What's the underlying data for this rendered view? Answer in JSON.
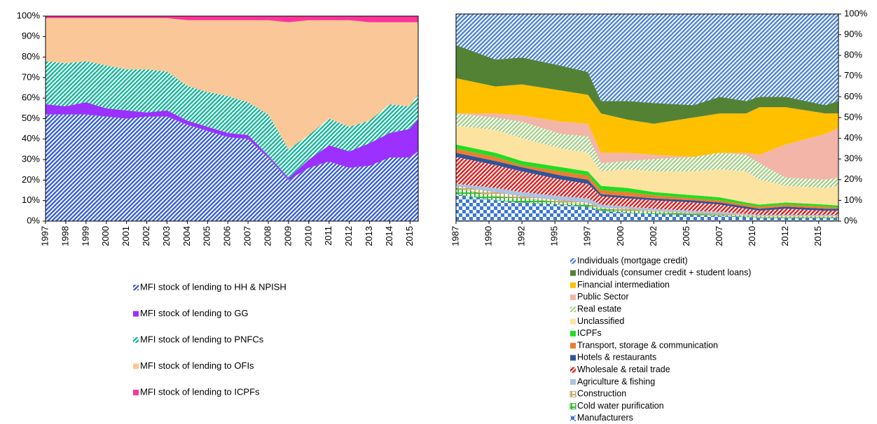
{
  "chart_data": [
    {
      "type": "area",
      "stacked": true,
      "x": [
        1997,
        1998,
        1999,
        2000,
        2001,
        2002,
        2003,
        2004,
        2005,
        2006,
        2007,
        2008,
        2009,
        2010,
        2011,
        2012,
        2013,
        2014,
        2015,
        2015.4
      ],
      "xlim": [
        1997,
        2015.4
      ],
      "xticks": [
        1997,
        1998,
        1999,
        2000,
        2001,
        2002,
        2003,
        2004,
        2005,
        2006,
        2007,
        2008,
        2009,
        2010,
        2011,
        2012,
        2013,
        2014,
        2015
      ],
      "ylim": [
        0,
        100
      ],
      "yticks": [
        {
          "value": 0,
          "label": "0%"
        },
        {
          "value": 10,
          "label": "10%"
        },
        {
          "value": 20,
          "label": "20%"
        },
        {
          "value": 30,
          "label": "30%"
        },
        {
          "value": 40,
          "label": "40%"
        },
        {
          "value": 50,
          "label": "50%"
        },
        {
          "value": 60,
          "label": "60%"
        },
        {
          "value": 70,
          "label": "70%"
        },
        {
          "value": 80,
          "label": "80%"
        },
        {
          "value": 90,
          "label": "90%"
        },
        {
          "value": 100,
          "label": "100%"
        }
      ],
      "y_axis_side": "left",
      "legend": "bottom",
      "legend_order": "forward",
      "series": [
        {
          "name": "MFI stock of lending to HH & NPISH",
          "color": "#3a62d6",
          "pattern": "stripes",
          "values": [
            52,
            52,
            52,
            51,
            50,
            51,
            51,
            47,
            44,
            41,
            40,
            31,
            20,
            26,
            29,
            26,
            27,
            31,
            31,
            34
          ]
        },
        {
          "name": "MFI stock of lending to GG",
          "color": "#9b30ff",
          "pattern": "solid",
          "values": [
            5,
            4,
            6,
            4,
            4,
            2,
            3,
            2,
            2,
            2,
            2,
            1,
            1,
            4,
            8,
            8,
            11,
            12,
            14,
            16
          ]
        },
        {
          "name": "MFI stock of lending to PNFCs",
          "color": "#18b89a",
          "pattern": "stripes",
          "values": [
            21,
            21,
            20,
            21,
            20,
            21,
            19,
            17,
            17,
            18,
            16,
            20,
            14,
            12,
            13,
            12,
            11,
            14,
            11,
            12
          ]
        },
        {
          "name": "MFI stock of lending to OFIs",
          "color": "#fac898",
          "pattern": "solid",
          "values": [
            21,
            22,
            21,
            23,
            25,
            25,
            26,
            32,
            35,
            37,
            40,
            46,
            62,
            56,
            48,
            52,
            48,
            40,
            41,
            35
          ]
        },
        {
          "name": "MFI stock of lending to ICPFs",
          "color": "#ff3399",
          "pattern": "solid",
          "values": [
            1,
            1,
            1,
            1,
            1,
            1,
            1,
            2,
            2,
            2,
            2,
            2,
            3,
            2,
            2,
            2,
            3,
            3,
            3,
            3
          ]
        }
      ]
    },
    {
      "type": "area",
      "stacked": true,
      "x": [
        1987,
        1990,
        1992,
        1995,
        1997,
        1998,
        2000,
        2002,
        2005,
        2007,
        2009,
        2010,
        2012,
        2015,
        2016
      ],
      "xlim": [
        1987,
        2016
      ],
      "xticks": [
        1987,
        {
          "value": 1989.5,
          "label": "1990"
        },
        1992,
        {
          "value": 1994.5,
          "label": "1995"
        },
        1997,
        {
          "value": 1999.5,
          "label": "2000"
        },
        2002,
        {
          "value": 2004.5,
          "label": "2005"
        },
        2007,
        {
          "value": 2009.5,
          "label": "2010"
        },
        2012,
        {
          "value": 2014.5,
          "label": "2015"
        }
      ],
      "ylim": [
        0,
        100
      ],
      "yticks": [
        {
          "value": 0,
          "label": "0%"
        },
        {
          "value": 10,
          "label": "10%"
        },
        {
          "value": 20,
          "label": "20%"
        },
        {
          "value": 30,
          "label": "30%"
        },
        {
          "value": 40,
          "label": "40%"
        },
        {
          "value": 50,
          "label": "50%"
        },
        {
          "value": 60,
          "label": "60%"
        },
        {
          "value": 70,
          "label": "70%"
        },
        {
          "value": 80,
          "label": "80%"
        },
        {
          "value": 90,
          "label": "90%"
        },
        {
          "value": 100,
          "label": "100%"
        }
      ],
      "y_axis_side": "right",
      "legend": "bottom",
      "legend_order": "reverse",
      "series": [
        {
          "name": "Manufacturers",
          "color": "#3c78d8",
          "pattern": "checker",
          "values": [
            13,
            10,
            9,
            8,
            7,
            5,
            4,
            3.5,
            3,
            2.5,
            2,
            1.5,
            1.5,
            1.5,
            1.5
          ]
        },
        {
          "name": "Cold water purification",
          "color": "#33bb33",
          "pattern": "outline",
          "values": [
            3,
            2,
            2,
            1,
            1,
            1,
            1,
            1,
            0.5,
            0.5,
            0.5,
            0.5,
            0.5,
            0.5,
            0.5
          ]
        },
        {
          "name": "Construction",
          "color": "#c4a96a",
          "pattern": "outline",
          "values": [
            1,
            2,
            1,
            1,
            1,
            0.5,
            1,
            0.5,
            0.5,
            0.5,
            0.5,
            0.5,
            0.5,
            0.5,
            0.5
          ]
        },
        {
          "name": "Agriculture & fishing",
          "color": "#aac4e2",
          "pattern": "solid",
          "values": [
            1,
            2,
            2,
            2,
            2,
            1.5,
            1,
            1,
            1,
            1,
            0.5,
            0.5,
            0.5,
            0.5,
            0.5
          ]
        },
        {
          "name": "Wholesale & retail trade",
          "color": "#e02020",
          "pattern": "stripes",
          "values": [
            13,
            11,
            10,
            8,
            7,
            4,
            4,
            4,
            4,
            3.5,
            2.5,
            2,
            3,
            2,
            2
          ]
        },
        {
          "name": "Hotels & restaurants",
          "color": "#2f5597",
          "pattern": "solid",
          "values": [
            2,
            2,
            2,
            2,
            2,
            1,
            1,
            1,
            1,
            1,
            1,
            1,
            1,
            1,
            1
          ]
        },
        {
          "name": "Transport, storage & communication",
          "color": "#ed7d31",
          "pattern": "solid",
          "values": [
            2,
            2,
            1,
            2,
            2,
            2,
            2,
            1.5,
            1,
            1,
            1,
            1,
            1,
            1,
            0.5
          ]
        },
        {
          "name": "ICPFs",
          "color": "#22dd22",
          "pattern": "solid",
          "values": [
            2,
            2,
            2,
            2,
            2,
            2,
            2,
            1.5,
            1.5,
            1.5,
            1,
            1,
            1,
            1,
            1
          ]
        },
        {
          "name": "Unclassified",
          "color": "#fde3a0",
          "pattern": "solid",
          "values": [
            9,
            11,
            11,
            9,
            9,
            7,
            9,
            10,
            11.5,
            13.5,
            15,
            12,
            8,
            8,
            9.5
          ]
        },
        {
          "name": "Real estate",
          "color": "#a9d18e",
          "pattern": "stripes",
          "values": [
            6,
            6,
            8,
            7,
            8,
            4,
            4,
            6,
            7,
            8,
            8,
            8,
            4,
            4,
            4
          ]
        },
        {
          "name": "Public Sector",
          "color": "#f2b5a7",
          "pattern": "solid",
          "values": [
            0,
            2,
            3,
            6,
            6,
            5,
            4,
            2,
            0,
            0,
            1,
            4,
            16,
            22,
            24
          ]
        },
        {
          "name": "Financial intermediation",
          "color": "#ffc000",
          "pattern": "solid",
          "values": [
            17,
            13,
            15,
            15,
            14,
            19,
            16,
            15,
            19,
            19,
            19,
            23,
            18,
            10,
            7
          ]
        },
        {
          "name": "Individuals (consumer credit + student loans)",
          "color": "#548235",
          "pattern": "solid",
          "values": [
            16,
            13,
            13,
            12,
            11,
            6,
            9,
            10,
            6,
            8,
            6,
            5,
            5,
            4,
            6
          ]
        },
        {
          "name": "Individuals (mortgage credit)",
          "color": "#4f86d4",
          "pattern": "stripes",
          "values": [
            15,
            22,
            21,
            25,
            28,
            42,
            42,
            43,
            44,
            40,
            42,
            40,
            40,
            44,
            42
          ]
        }
      ]
    }
  ]
}
